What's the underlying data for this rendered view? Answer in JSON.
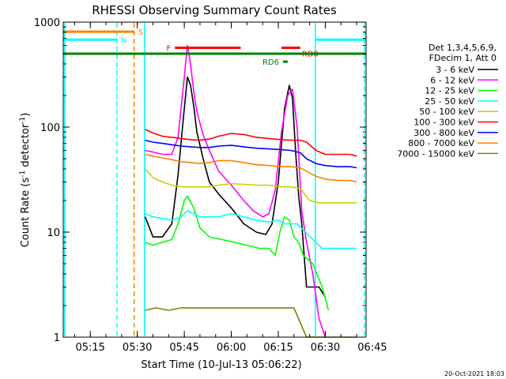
{
  "chart_data": {
    "type": "line",
    "title": "RHESSI Observing Summary Count Rates",
    "xlabel": "Start Time (10-Jul-13 05:06:22)",
    "ylabel_pre": "Count Rate (s",
    "ylabel_sup": "-1",
    "ylabel_post": " detector",
    "ylabel_sup2": "-1",
    "ylabel_end": ")",
    "yscale": "log",
    "ylim": [
      1,
      1000
    ],
    "xlim_minutes": [
      306.37,
      403.0
    ],
    "x_ticks": [
      {
        "label": "05:15",
        "minute": 315
      },
      {
        "label": "05:30",
        "minute": 330
      },
      {
        "label": "05:45",
        "minute": 345
      },
      {
        "label": "06:00",
        "minute": 360
      },
      {
        "label": "06:15",
        "minute": 375
      },
      {
        "label": "06:30",
        "minute": 390
      },
      {
        "label": "06:45",
        "minute": 405
      }
    ],
    "y_ticks": [
      {
        "label": "1",
        "value": 1
      },
      {
        "label": "10",
        "value": 10
      },
      {
        "label": "100",
        "value": 100
      },
      {
        "label": "1000",
        "value": 1000
      }
    ],
    "timestamp": "20-Oct-2021 18:03",
    "legend_header": [
      "Det 1,3,4,5,6,9,",
      "FDecim 1, Att 0"
    ],
    "series": [
      {
        "name": "3 - 6 keV",
        "color": "#000000",
        "points": [
          [
            332.5,
            14
          ],
          [
            335,
            9
          ],
          [
            338,
            9
          ],
          [
            341,
            12
          ],
          [
            343,
            35
          ],
          [
            345,
            150
          ],
          [
            346,
            300
          ],
          [
            347,
            250
          ],
          [
            348,
            160
          ],
          [
            349,
            90
          ],
          [
            351,
            50
          ],
          [
            353,
            30
          ],
          [
            356,
            23
          ],
          [
            360,
            17
          ],
          [
            364,
            12
          ],
          [
            368,
            10
          ],
          [
            371,
            9.5
          ],
          [
            373,
            12
          ],
          [
            375,
            30
          ],
          [
            377,
            150
          ],
          [
            378.5,
            250
          ],
          [
            379.5,
            190
          ],
          [
            380.5,
            60
          ],
          [
            381.5,
            22
          ],
          [
            382.5,
            12
          ],
          [
            384,
            3
          ],
          [
            388,
            3
          ],
          [
            390,
            2.4
          ]
        ]
      },
      {
        "name": "6 - 12 keV",
        "color": "#ff00ff",
        "points": [
          [
            332.5,
            60
          ],
          [
            335,
            58
          ],
          [
            338,
            55
          ],
          [
            341,
            55
          ],
          [
            343,
            80
          ],
          [
            345,
            300
          ],
          [
            346,
            600
          ],
          [
            347,
            400
          ],
          [
            348,
            220
          ],
          [
            349,
            140
          ],
          [
            351,
            85
          ],
          [
            353,
            60
          ],
          [
            356,
            38
          ],
          [
            360,
            28
          ],
          [
            364,
            20
          ],
          [
            367,
            16
          ],
          [
            370,
            14
          ],
          [
            372,
            15
          ],
          [
            374,
            25
          ],
          [
            376,
            90
          ],
          [
            378,
            200
          ],
          [
            379.5,
            230
          ],
          [
            381,
            100
          ],
          [
            382.5,
            16
          ],
          [
            384,
            8
          ],
          [
            386,
            4
          ],
          [
            388,
            1.5
          ],
          [
            390,
            1.0
          ]
        ]
      },
      {
        "name": "12 - 25 keV",
        "color": "#00ff00",
        "points": [
          [
            332.5,
            8
          ],
          [
            335,
            7.5
          ],
          [
            338,
            8
          ],
          [
            341,
            8.5
          ],
          [
            343,
            12
          ],
          [
            345,
            20
          ],
          [
            346,
            22
          ],
          [
            348,
            17
          ],
          [
            350,
            11
          ],
          [
            353,
            9
          ],
          [
            357,
            8.5
          ],
          [
            361,
            8
          ],
          [
            365,
            7.5
          ],
          [
            369,
            7
          ],
          [
            372,
            7
          ],
          [
            374,
            6
          ],
          [
            375.5,
            10
          ],
          [
            377,
            14
          ],
          [
            378.5,
            13
          ],
          [
            380,
            9
          ],
          [
            381.5,
            8
          ],
          [
            383,
            6
          ],
          [
            386,
            5
          ],
          [
            389,
            3
          ],
          [
            391,
            1.8
          ]
        ]
      },
      {
        "name": "25 - 50 keV",
        "color": "#00ffff",
        "points": [
          [
            332.5,
            15
          ],
          [
            335,
            14
          ],
          [
            338,
            13.5
          ],
          [
            341,
            13
          ],
          [
            344,
            14
          ],
          [
            346,
            16
          ],
          [
            348,
            15
          ],
          [
            350,
            14
          ],
          [
            353,
            14
          ],
          [
            356,
            14
          ],
          [
            360,
            15
          ],
          [
            364,
            14
          ],
          [
            368,
            13
          ],
          [
            372,
            12.5
          ],
          [
            375,
            13
          ],
          [
            377,
            12
          ],
          [
            379,
            12
          ],
          [
            381,
            12
          ],
          [
            383,
            10.5
          ],
          [
            386,
            8.5
          ],
          [
            389,
            7
          ],
          [
            392,
            7
          ],
          [
            396,
            7
          ],
          [
            400,
            7
          ]
        ]
      },
      {
        "name": "50 - 100 keV",
        "color": "#cccc00",
        "points": [
          [
            332.5,
            40
          ],
          [
            335,
            33
          ],
          [
            338,
            30
          ],
          [
            341,
            28
          ],
          [
            344,
            27
          ],
          [
            347,
            27
          ],
          [
            350,
            27
          ],
          [
            353,
            27
          ],
          [
            356,
            28
          ],
          [
            360,
            29
          ],
          [
            364,
            28.5
          ],
          [
            368,
            28
          ],
          [
            372,
            28
          ],
          [
            376,
            27
          ],
          [
            379,
            27
          ],
          [
            382,
            26
          ],
          [
            385,
            20
          ],
          [
            388,
            19
          ],
          [
            392,
            19
          ],
          [
            396,
            19
          ],
          [
            400,
            19
          ]
        ]
      },
      {
        "name": "100 - 300 keV",
        "color": "#ff0000",
        "points": [
          [
            332.5,
            95
          ],
          [
            335,
            88
          ],
          [
            338,
            82
          ],
          [
            341,
            80
          ],
          [
            344,
            78
          ],
          [
            347,
            76
          ],
          [
            350,
            75
          ],
          [
            353,
            77
          ],
          [
            356,
            82
          ],
          [
            360,
            87
          ],
          [
            364,
            85
          ],
          [
            368,
            80
          ],
          [
            372,
            78
          ],
          [
            376,
            76
          ],
          [
            379,
            75
          ],
          [
            382,
            75
          ],
          [
            384,
            72
          ],
          [
            387,
            60
          ],
          [
            390,
            55
          ],
          [
            394,
            55
          ],
          [
            398,
            55
          ],
          [
            400,
            53
          ]
        ]
      },
      {
        "name": "300 - 800 keV",
        "color": "#0000ff",
        "points": [
          [
            332.5,
            75
          ],
          [
            335,
            72
          ],
          [
            338,
            70
          ],
          [
            341,
            68
          ],
          [
            344,
            66
          ],
          [
            347,
            65
          ],
          [
            350,
            64
          ],
          [
            353,
            64
          ],
          [
            356,
            66
          ],
          [
            360,
            67
          ],
          [
            364,
            65
          ],
          [
            368,
            63
          ],
          [
            372,
            62
          ],
          [
            376,
            61
          ],
          [
            379,
            60
          ],
          [
            382,
            57
          ],
          [
            384,
            50
          ],
          [
            387,
            45
          ],
          [
            390,
            43
          ],
          [
            394,
            42
          ],
          [
            398,
            42
          ],
          [
            400,
            41
          ]
        ]
      },
      {
        "name": "800 - 7000 keV",
        "color": "#ff8000",
        "points": [
          [
            332.5,
            55
          ],
          [
            335,
            53
          ],
          [
            338,
            51
          ],
          [
            341,
            49
          ],
          [
            344,
            47
          ],
          [
            347,
            46
          ],
          [
            350,
            45
          ],
          [
            353,
            46
          ],
          [
            356,
            48
          ],
          [
            360,
            48
          ],
          [
            364,
            46
          ],
          [
            368,
            44
          ],
          [
            372,
            43
          ],
          [
            376,
            42
          ],
          [
            379,
            42
          ],
          [
            382,
            41
          ],
          [
            384,
            38
          ],
          [
            387,
            34
          ],
          [
            390,
            32
          ],
          [
            394,
            31
          ],
          [
            398,
            31
          ],
          [
            400,
            30
          ]
        ]
      },
      {
        "name": "7000 - 15000 keV",
        "color": "#808000",
        "points": [
          [
            332.5,
            1.8
          ],
          [
            336,
            1.9
          ],
          [
            340,
            1.8
          ],
          [
            344,
            1.9
          ],
          [
            348,
            1.9
          ],
          [
            352,
            1.9
          ],
          [
            356,
            1.9
          ],
          [
            360,
            1.9
          ],
          [
            364,
            1.9
          ],
          [
            368,
            1.9
          ],
          [
            372,
            1.9
          ],
          [
            376,
            1.9
          ],
          [
            380,
            1.9
          ],
          [
            384,
            1.0
          ],
          [
            388,
            1.0
          ],
          [
            400,
            1.0
          ]
        ]
      }
    ],
    "flag_bars": [
      {
        "label": "S",
        "color": "#ff8000",
        "x0": 306.37,
        "x1": 329.0,
        "y": 810,
        "label_side": "right"
      },
      {
        "label": "N",
        "color": "#00ffff",
        "x0": 306.37,
        "x1": 323.5,
        "y": 680,
        "label_side": "right"
      },
      {
        "label": "N",
        "color": "#00ffff",
        "x0": 387.0,
        "x1": 403.0,
        "y": 680,
        "label_side": "none"
      },
      {
        "label": "F",
        "color": "#ff0000",
        "x0": 342.0,
        "x1": 363.0,
        "y": 570,
        "label_side": "left"
      },
      {
        "label": "RD0",
        "color": "#ff0000",
        "x0": 376.0,
        "x1": 382.0,
        "y": 570,
        "label_side": "below"
      },
      {
        "label": "RD6",
        "color": "#008000",
        "x0": 376.5,
        "x1": 378.0,
        "y": 420,
        "label_side": "left"
      },
      {
        "label": "",
        "color": "#008000",
        "x0": 306.37,
        "x1": 403.0,
        "y": 500,
        "label_side": "none"
      }
    ],
    "vlines": [
      {
        "minute": 306.8,
        "color": "#00ffff",
        "dashed": false
      },
      {
        "minute": 323.5,
        "color": "#00ffff",
        "dashed": true
      },
      {
        "minute": 329.0,
        "color": "#ff8000",
        "dashed": true
      },
      {
        "minute": 332.3,
        "color": "#00ffff",
        "dashed": false
      },
      {
        "minute": 386.8,
        "color": "#00ffff",
        "dashed": false
      },
      {
        "minute": 402.5,
        "color": "#00ffff",
        "dashed": true
      }
    ]
  }
}
